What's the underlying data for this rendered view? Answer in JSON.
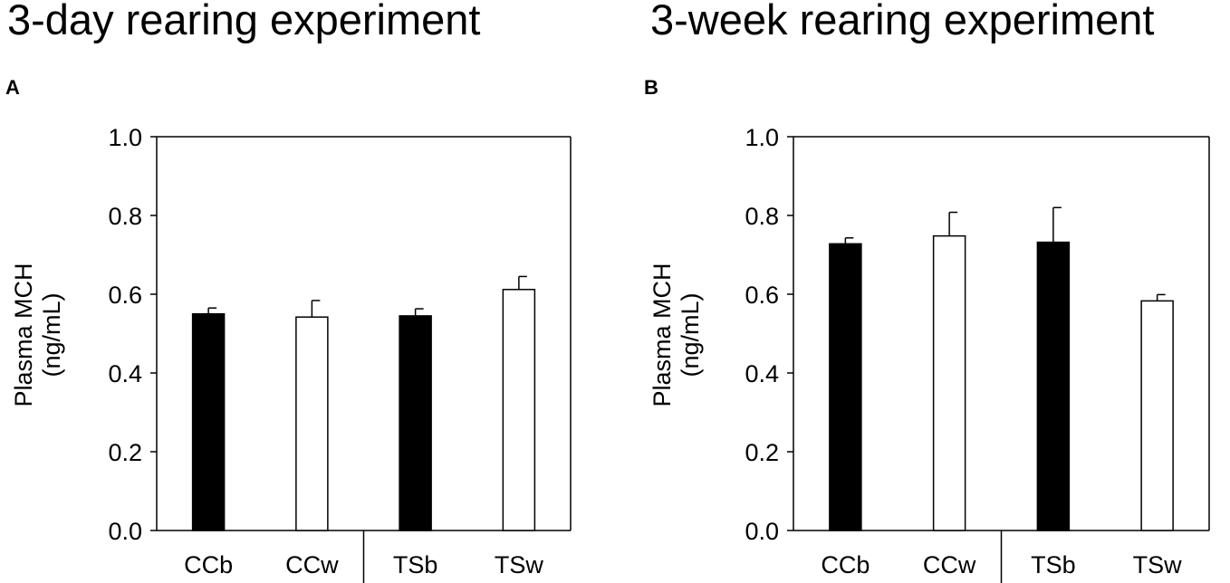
{
  "panels": [
    {
      "heading": "3-day rearing experiment",
      "letter": "A"
    },
    {
      "heading": "3-week rearing experiment",
      "letter": "B"
    }
  ],
  "chart_data": [
    {
      "type": "bar",
      "title": "3-day rearing experiment",
      "panel": "A",
      "categories": [
        "CCb",
        "CCw",
        "TSb",
        "TSw"
      ],
      "values": [
        0.55,
        0.542,
        0.545,
        0.612
      ],
      "errors": [
        0.015,
        0.042,
        0.018,
        0.033
      ],
      "bar_colors": [
        "#000000",
        "#ffffff",
        "#000000",
        "#ffffff"
      ],
      "ylabel": [
        "Plasma MCH",
        "(ng/mL)"
      ],
      "xlabel": "",
      "ylim": [
        0,
        1.0
      ],
      "yticks": [
        "0.0",
        "0.2",
        "0.4",
        "0.6",
        "0.8",
        "1.0"
      ]
    },
    {
      "type": "bar",
      "title": "3-week rearing experiment",
      "panel": "B",
      "categories": [
        "CCb",
        "CCw",
        "TSb",
        "TSw"
      ],
      "values": [
        0.728,
        0.748,
        0.732,
        0.583
      ],
      "errors": [
        0.015,
        0.06,
        0.088,
        0.016
      ],
      "bar_colors": [
        "#000000",
        "#ffffff",
        "#000000",
        "#ffffff"
      ],
      "ylabel": [
        "Plasma MCH",
        "(ng/mL)"
      ],
      "xlabel": "",
      "ylim": [
        0,
        1.0
      ],
      "yticks": [
        "0.0",
        "0.2",
        "0.4",
        "0.6",
        "0.8",
        "1.0"
      ]
    }
  ]
}
